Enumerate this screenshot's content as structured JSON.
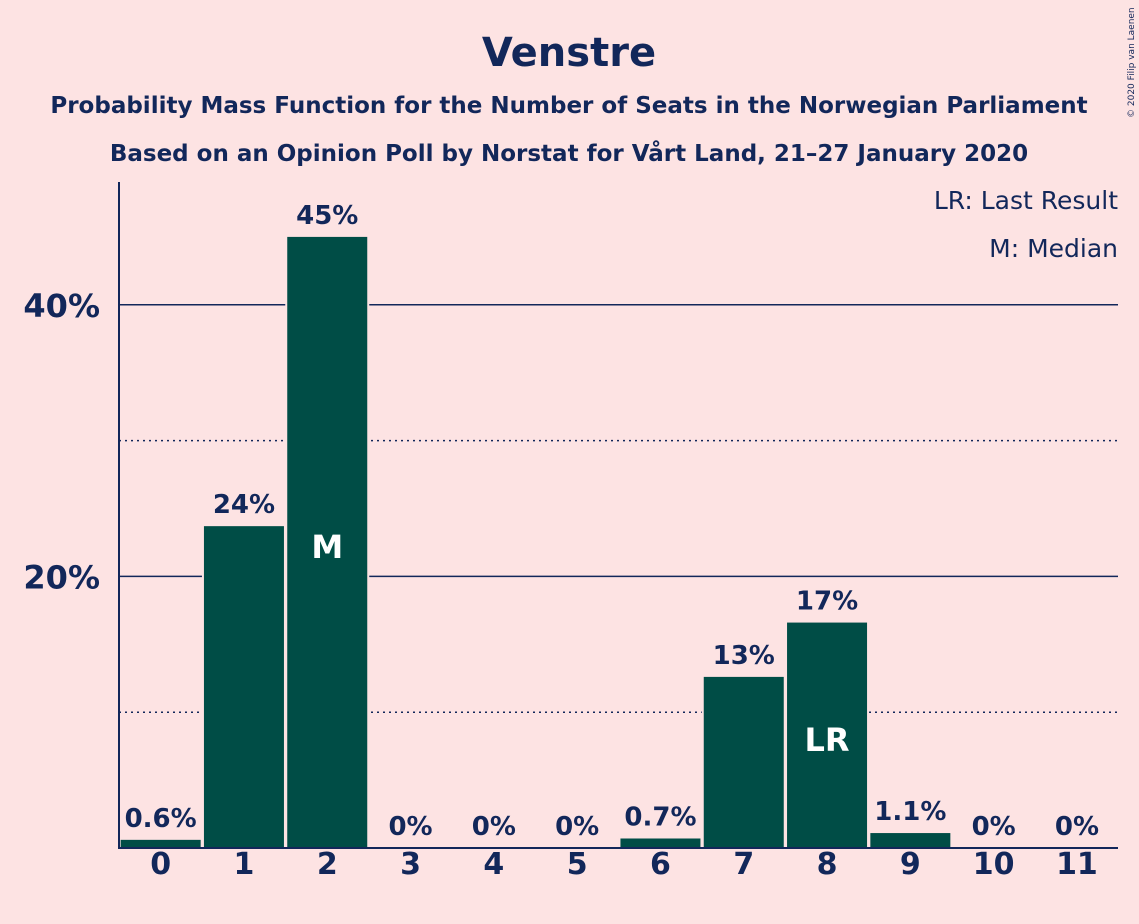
{
  "chart_data": {
    "type": "bar",
    "title": "Venstre",
    "subtitle_1": "Probability Mass Function for the Number of Seats in the Norwegian Parliament",
    "subtitle_2": "Based on an Opinion Poll by Norstat for Vårt Land, 21–27 January 2020",
    "categories": [
      "0",
      "1",
      "2",
      "3",
      "4",
      "5",
      "6",
      "7",
      "8",
      "9",
      "10",
      "11"
    ],
    "values": [
      0.6,
      23.7,
      45.0,
      0,
      0,
      0,
      0.7,
      12.6,
      16.6,
      1.1,
      0,
      0
    ],
    "value_labels": [
      "0.6%",
      "24%",
      "45%",
      "0%",
      "0%",
      "0%",
      "0.7%",
      "13%",
      "17%",
      "1.1%",
      "0%",
      "0%"
    ],
    "inner_labels": {
      "2": "M",
      "8": "LR"
    },
    "yticks": [
      {
        "value": 20,
        "label": "20%"
      },
      {
        "value": 40,
        "label": "40%"
      }
    ],
    "minor_gridlines": [
      10,
      30
    ],
    "ylim": [
      0,
      49
    ],
    "legend": [
      "LR: Last Result",
      "M: Median"
    ],
    "legend_position": "top-right",
    "copyright": "© 2020 Filip van Laenen",
    "colors": {
      "bar": "#004d46",
      "background": "#fde3e3",
      "text": "#12275a",
      "inner_label": "#ffffff"
    }
  }
}
